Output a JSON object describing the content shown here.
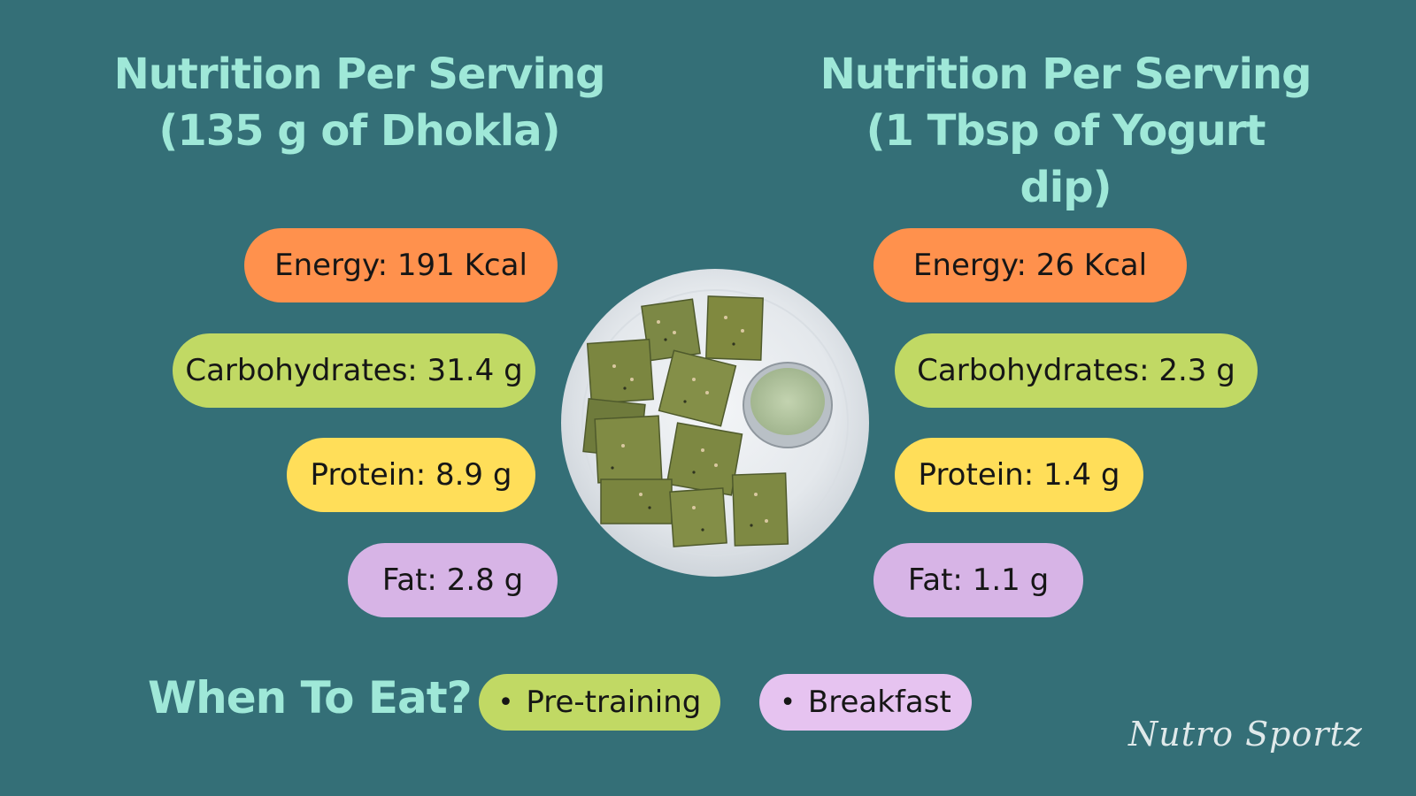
{
  "left_panel": {
    "title_line1": "Nutrition Per Serving",
    "title_line2": "(135 g of Dhokla)",
    "energy": "Energy: 191 Kcal",
    "carbohydrates": "Carbohydrates: 31.4 g",
    "protein": "Protein: 8.9 g",
    "fat": "Fat: 2.8 g"
  },
  "right_panel": {
    "title_line1": "Nutrition Per Serving",
    "title_line2": "(1 Tbsp of Yogurt dip)",
    "energy": "Energy: 26 Kcal",
    "carbohydrates": "Carbohydrates: 2.3 g",
    "protein": "Protein: 1.4 g",
    "fat": "Fat: 1.1 g"
  },
  "when_to_eat": {
    "title": "When To Eat?",
    "tags": [
      "Pre-training",
      "Breakfast"
    ],
    "bullet": "•"
  },
  "brand": "Nutro Sportz",
  "colors": {
    "background": "#346f77",
    "title": "#9fe8d8",
    "energy": "#ff914d",
    "carbohydrates": "#c1d964",
    "protein": "#ffde59",
    "fat": "#d7b4e6",
    "breakfast_tag": "#e6c3f0"
  },
  "icons": {
    "center_image": "dhokla-plate-icon"
  }
}
